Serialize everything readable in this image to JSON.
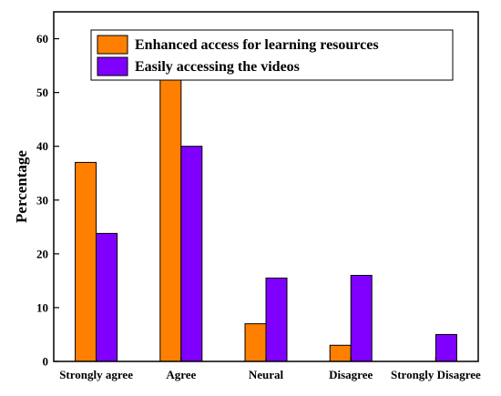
{
  "chart_data": {
    "type": "bar",
    "title": "",
    "xlabel": "",
    "ylabel": "Percentage",
    "ylim": [
      0,
      65
    ],
    "yticks": [
      0,
      10,
      20,
      30,
      40,
      50,
      60
    ],
    "categories": [
      "Strongly agree",
      "Agree",
      "Neural",
      "Disagree",
      "Strongly Disagree"
    ],
    "series": [
      {
        "name": "Enhanced access for learning resources",
        "color": "#ff8000",
        "values": [
          37,
          53,
          7,
          3,
          0
        ]
      },
      {
        "name": "Easily accessing the videos",
        "color": "#8000ff",
        "values": [
          23.8,
          40,
          15.5,
          16,
          5
        ]
      }
    ],
    "legend_position": "top-center",
    "grid": false
  }
}
